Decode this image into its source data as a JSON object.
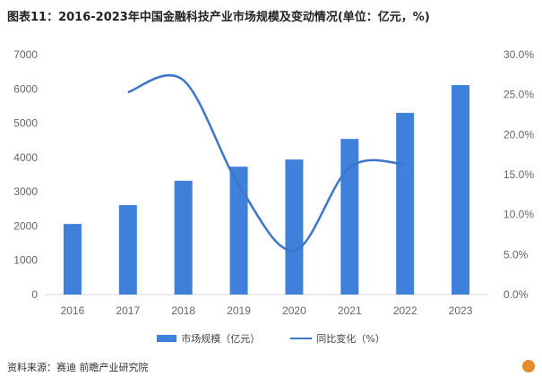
{
  "chart_data": {
    "type": "bar+line",
    "title": "图表11：2016-2023年中国金融科技产业市场规模及变动情况(单位：亿元，%)",
    "categories": [
      "2016",
      "2017",
      "2018",
      "2019",
      "2020",
      "2021",
      "2022",
      "2023"
    ],
    "series": [
      {
        "name": "市场规模（亿元）",
        "type": "bar",
        "axis": "left",
        "color": "#3f80db",
        "values": [
          2060,
          2610,
          3320,
          3730,
          3940,
          4540,
          5300,
          6110
        ]
      },
      {
        "name": "同比变化（%）",
        "type": "line",
        "axis": "right",
        "color": "#3d75cc",
        "values": [
          null,
          25.3,
          26.8,
          13.7,
          5.5,
          15.9,
          16.3,
          null
        ]
      }
    ],
    "yleft": {
      "ylim": [
        0,
        7000
      ],
      "ticks": [
        "0",
        "1000",
        "2000",
        "3000",
        "4000",
        "5000",
        "6000",
        "7000"
      ]
    },
    "yright": {
      "ylim": [
        0,
        30
      ],
      "ticks": [
        "0.0%",
        "5.0%",
        "10.0%",
        "15.0%",
        "20.0%",
        "25.0%",
        "30.0%"
      ]
    },
    "grid": false,
    "legend": "bottom"
  },
  "source": "资料来源：赛迪 前瞻产业研究院",
  "logo_text": "前瞻产业研究院"
}
